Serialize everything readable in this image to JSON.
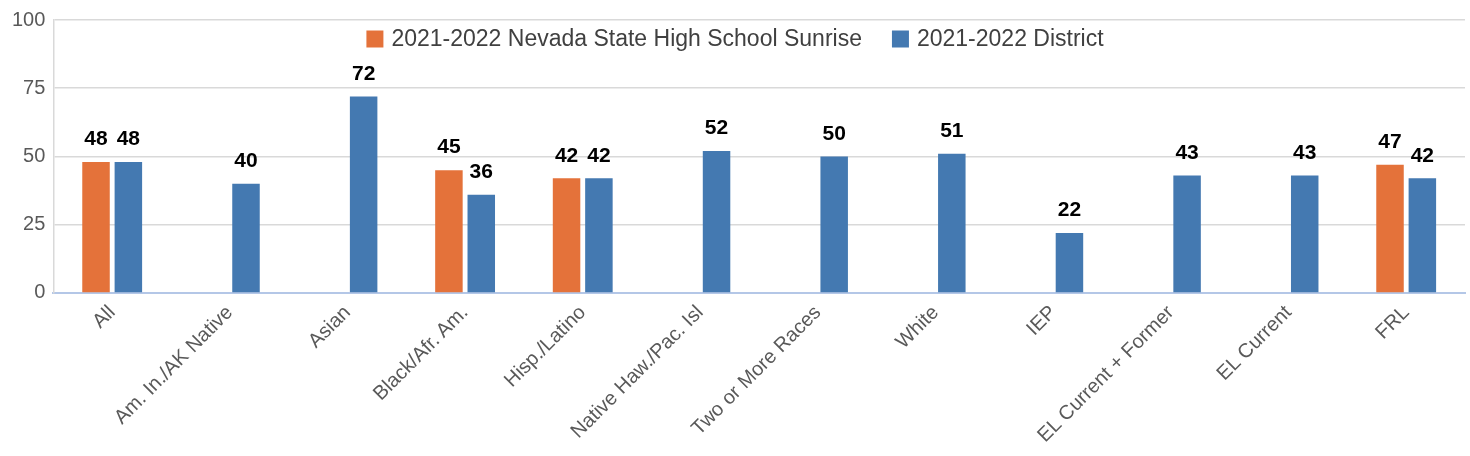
{
  "chart_data": {
    "type": "bar",
    "categories": [
      "All",
      "Am. In./AK Native",
      "Asian",
      "Black/Afr. Am.",
      "Hisp./Latino",
      "Native Haw./Pac. Isl",
      "Two or More Races",
      "White",
      "IEP",
      "EL Current + Former",
      "EL Current",
      "FRL"
    ],
    "series": [
      {
        "name": "2021-2022 Nevada State High School Sunrise",
        "color": "#e4723a",
        "values": [
          48,
          null,
          null,
          45,
          42,
          null,
          null,
          null,
          null,
          null,
          null,
          47
        ]
      },
      {
        "name": "2021-2022 District",
        "color": "#4479b1",
        "values": [
          48,
          40,
          72,
          36,
          42,
          52,
          50,
          51,
          22,
          43,
          43,
          42
        ]
      }
    ],
    "ylim": [
      0,
      100
    ],
    "yticks": [
      0,
      25,
      50,
      75,
      100
    ],
    "grid": "y",
    "legend": "top",
    "data_labels": true
  }
}
